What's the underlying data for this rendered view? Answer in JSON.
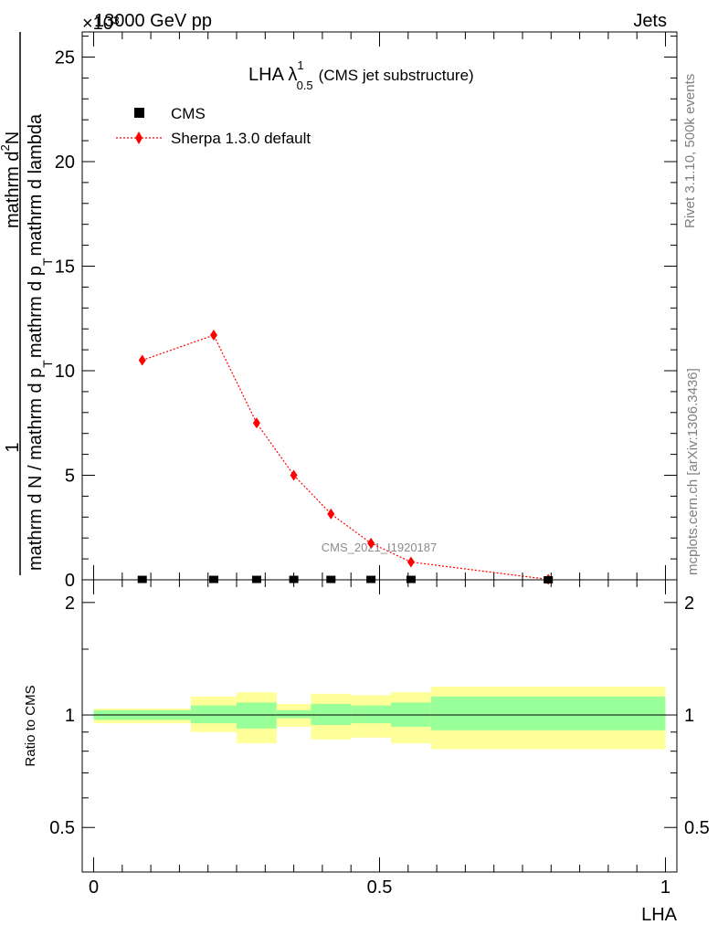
{
  "header": {
    "energy_label": "13000 GeV pp",
    "category_label": "Jets",
    "exponent_label": "×10³"
  },
  "side_labels": {
    "rivet": "Rivet 3.1.10,  500k events",
    "site": "mcplots.cern.ch [arXiv:1306.3436]"
  },
  "watermark": "CMS_2021_I1920187",
  "chart_data": [
    {
      "type": "line",
      "title_main": "LHA λ",
      "title_sup": "1",
      "title_sub": "0.5",
      "title_note": "(CMS jet substructure)",
      "ylabel_num": "1",
      "ylabel_den_parts": [
        "mathrm d N / mathrm d p",
        "T",
        "mathrm d p",
        "T",
        "mathrm d lambda"
      ],
      "ylabel_den_text": "mathrm d N / mathrm d p_T mathrm d p_T mathrm d lambda",
      "ylabel_right_parts": [
        "mathrm d",
        "2",
        "N"
      ],
      "ylabel_right_text": "mathrm d^2 N",
      "ylim": [
        0,
        26.2
      ],
      "yticks": [
        0,
        5,
        10,
        15,
        20,
        25
      ],
      "legend_position": "top-left",
      "series": [
        {
          "name": "CMS",
          "color": "#000000",
          "marker": "square",
          "x": [
            0.085,
            0.21,
            0.285,
            0.35,
            0.415,
            0.485,
            0.555,
            0.795
          ],
          "y": [
            0.02,
            0.02,
            0.02,
            0.02,
            0.02,
            0.02,
            0.02,
            0.0
          ]
        },
        {
          "name": "Sherpa 1.3.0 default",
          "color": "#ff0000",
          "marker": "diamond",
          "line": "dotted",
          "x": [
            0.085,
            0.21,
            0.285,
            0.35,
            0.415,
            0.485,
            0.555,
            0.795
          ],
          "y": [
            10.5,
            11.7,
            7.5,
            5.0,
            3.15,
            1.75,
            0.85,
            0.02
          ]
        }
      ]
    },
    {
      "type": "area",
      "ylabel": "Ratio to CMS",
      "xlabel": "LHA",
      "xlim": [
        -0.02,
        1.02
      ],
      "xticks": [
        0,
        0.5,
        1
      ],
      "ylim": [
        0.38,
        2.3
      ],
      "yticks": [
        0.5,
        1,
        2
      ],
      "ytick_labels": [
        "0.5",
        "1",
        "2"
      ],
      "reference_line": 1,
      "bands": {
        "edges": [
          0,
          0.17,
          0.25,
          0.32,
          0.38,
          0.45,
          0.52,
          0.59,
          1.0
        ],
        "outer_color": "#ffff99",
        "inner_color": "#99ff99",
        "inner_lo": [
          0.97,
          0.95,
          0.92,
          0.98,
          0.94,
          0.95,
          0.93,
          0.91
        ],
        "inner_hi": [
          1.03,
          1.06,
          1.08,
          1.03,
          1.07,
          1.06,
          1.08,
          1.12
        ],
        "outer_lo": [
          0.95,
          0.9,
          0.84,
          0.93,
          0.86,
          0.87,
          0.84,
          0.81
        ],
        "outer_hi": [
          1.04,
          1.12,
          1.15,
          1.07,
          1.14,
          1.13,
          1.15,
          1.19
        ]
      }
    }
  ]
}
